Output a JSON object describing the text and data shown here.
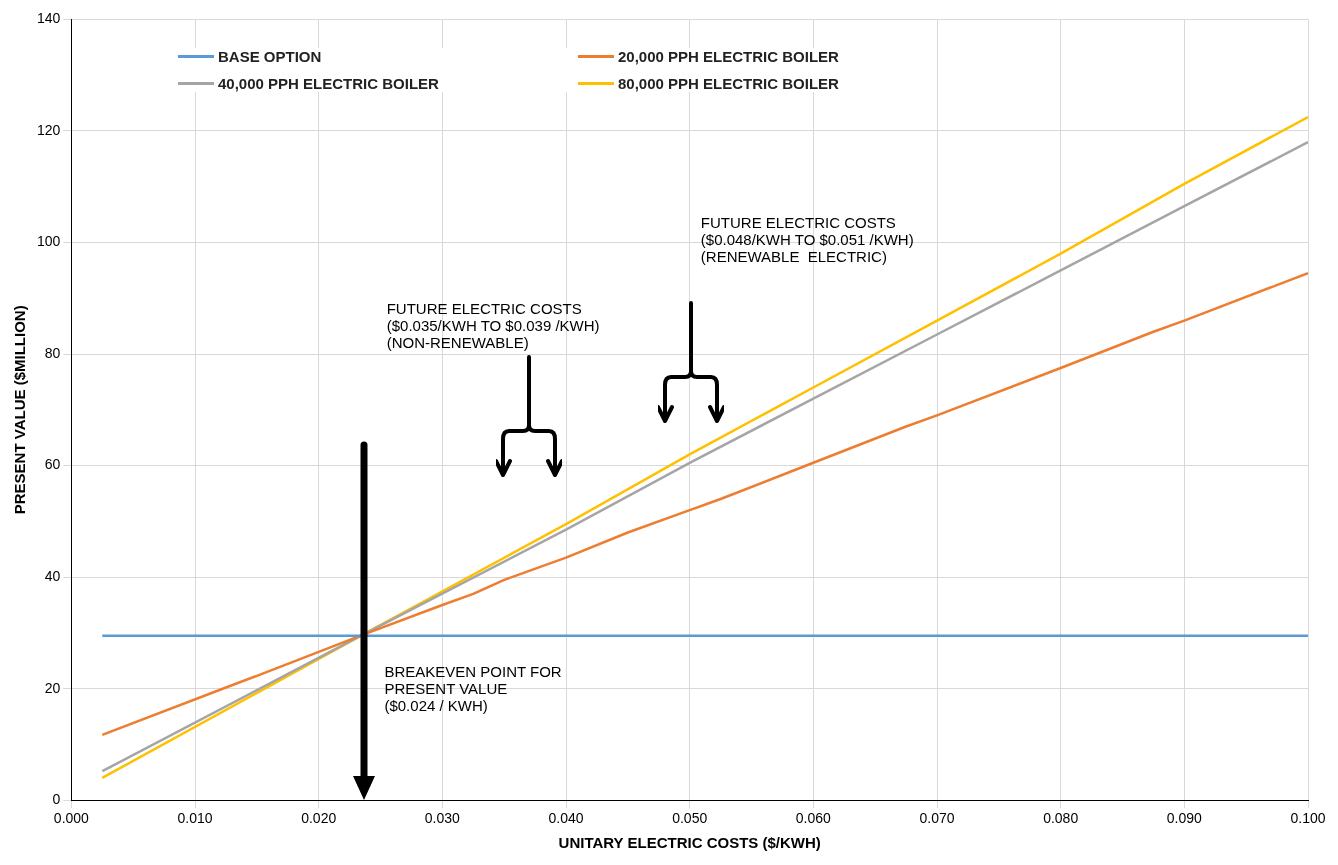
{
  "chart_data": {
    "type": "line",
    "xlabel": "UNITARY ELECTRIC COSTS ($/KWH)",
    "ylabel": "PRESENT VALUE ($MILLION)",
    "xlim": [
      0,
      0.1
    ],
    "ylim": [
      0,
      140
    ],
    "xticks": [
      {
        "value": 0,
        "label": "0.000"
      },
      {
        "value": 0.01,
        "label": "0.010"
      },
      {
        "value": 0.02,
        "label": "0.020"
      },
      {
        "value": 0.03,
        "label": "0.030"
      },
      {
        "value": 0.04,
        "label": "0.040"
      },
      {
        "value": 0.05,
        "label": "0.050"
      },
      {
        "value": 0.06,
        "label": "0.060"
      },
      {
        "value": 0.07,
        "label": "0.070"
      },
      {
        "value": 0.08,
        "label": "0.080"
      },
      {
        "value": 0.09,
        "label": "0.090"
      },
      {
        "value": 0.1,
        "label": "0.100"
      }
    ],
    "yticks": [
      0,
      20,
      40,
      60,
      80,
      100,
      120,
      140
    ],
    "grid": true,
    "legend": "top left",
    "marker": "none",
    "line_style": "solid",
    "series": [
      {
        "name": "BASE OPTION",
        "color": "#5b9bd5",
        "x": [
          0.0025,
          0.1
        ],
        "values": [
          29.5,
          29.5
        ]
      },
      {
        "name": "20,000 PPH ELECTRIC BOILER",
        "color": "#ed7d31",
        "x": [
          0.0025,
          0.0125,
          0.015,
          0.0235,
          0.03,
          0.0325,
          0.035,
          0.04,
          0.045,
          0.05,
          0.0525,
          0.06,
          0.0675,
          0.07,
          0.08,
          0.0875,
          0.09,
          0.1
        ],
        "values": [
          11.7,
          20.2,
          22.3,
          29.6,
          35,
          37,
          39.5,
          43.5,
          48,
          52,
          54,
          60.5,
          67,
          69,
          77.5,
          84,
          86,
          94.5
        ]
      },
      {
        "name": "40,000 PPH ELECTRIC BOILER",
        "color": "#a5a5a5",
        "x": [
          0.0025,
          0.0235,
          0.04,
          0.05,
          0.06,
          0.07,
          0.08,
          0.09,
          0.1
        ],
        "values": [
          5.2,
          29.6,
          48.5,
          60.5,
          72,
          83.5,
          95,
          106.5,
          118
        ]
      },
      {
        "name": "80,000 PPH ELECTRIC BOILER",
        "color": "#ffc000",
        "x": [
          0.0025,
          0.0235,
          0.04,
          0.05,
          0.06,
          0.07,
          0.08,
          0.09,
          0.1
        ],
        "values": [
          4,
          29.6,
          49.5,
          62,
          74,
          86,
          98,
          110.5,
          122.5
        ]
      }
    ],
    "annotations": [
      {
        "text": "BREAKEVEN POINT FOR\nPRESENT VALUE\n($0.024 / KWH)",
        "x": 0.0237,
        "y": 29.6
      },
      "FUTURE ELECTRIC COSTS\n($0.035/KWH TO $0.039 /KWH)\n(NON-RENEWABLE)",
      "FUTURE ELECTRIC COSTS\n($0.048/KWH TO $0.051 /KWH)\n(RENEWABLE  ELECTRIC)"
    ]
  }
}
